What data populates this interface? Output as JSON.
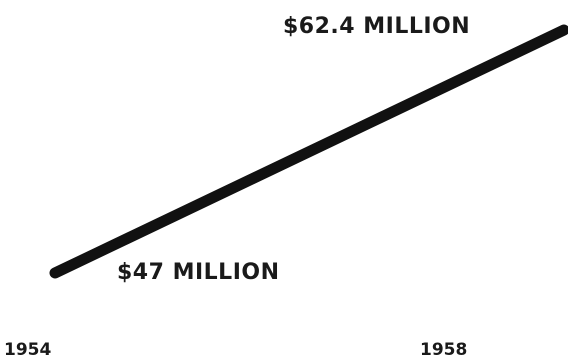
{
  "chart_data": {
    "type": "line",
    "x": [
      "1954",
      "1958"
    ],
    "series": [
      {
        "values": [
          47,
          62.4
        ]
      }
    ],
    "data_labels": [
      "$47 MILLION",
      "$62.4 MILLION"
    ],
    "tick_labels": [
      "1954",
      "1958"
    ],
    "grid": false,
    "line_color": "#111111"
  }
}
